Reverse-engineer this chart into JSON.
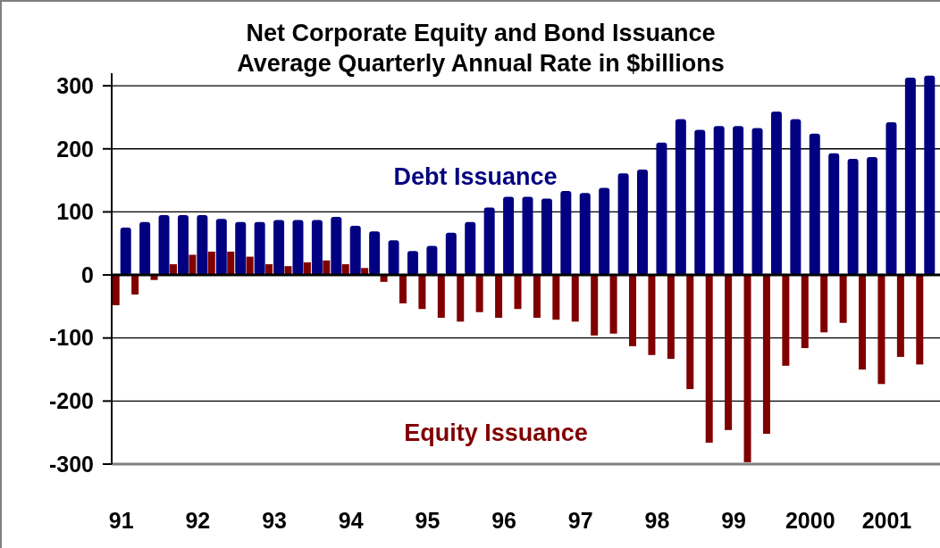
{
  "chart_data": {
    "type": "bar",
    "title": "Net Corporate Equity and Bond Issuance",
    "subtitle": "Average Quarterly Annual Rate  in $billions",
    "categories": [
      "91",
      null,
      null,
      null,
      "92",
      null,
      null,
      null,
      "93",
      null,
      null,
      null,
      "94",
      null,
      null,
      null,
      "95",
      null,
      null,
      null,
      "96",
      null,
      null,
      null,
      "97",
      null,
      null,
      null,
      "98",
      null,
      null,
      null,
      "99",
      null,
      null,
      null,
      "2000",
      null,
      null,
      null,
      "2001",
      null,
      null
    ],
    "series": [
      {
        "name": "Debt Issuance",
        "color": "#000080",
        "values": [
          75,
          84,
          95,
          95,
          95,
          89,
          84,
          84,
          87,
          87,
          87,
          92,
          78,
          69,
          55,
          38,
          46,
          67,
          84,
          107,
          124,
          124,
          121,
          133,
          130,
          138,
          161,
          167,
          210,
          247,
          230,
          236,
          236,
          233,
          259,
          247,
          224,
          193,
          184,
          187,
          242,
          313,
          316
        ]
      },
      {
        "name": "Equity Issuance",
        "color": "#800000",
        "values": [
          -48,
          -31,
          -8,
          17,
          32,
          37,
          37,
          29,
          17,
          14,
          20,
          23,
          17,
          11,
          -11,
          -45,
          -54,
          -68,
          -74,
          -59,
          -68,
          -54,
          -68,
          -71,
          -74,
          -96,
          -93,
          -113,
          -127,
          -133,
          -181,
          -266,
          -246,
          -297,
          -252,
          -144,
          -116,
          -91,
          -76,
          -150,
          -173,
          -130,
          -142
        ]
      }
    ],
    "ylim": [
      -300,
      320
    ],
    "yticks": [
      -300,
      -200,
      -100,
      0,
      100,
      200,
      300
    ],
    "grid": "y",
    "legend": false
  }
}
